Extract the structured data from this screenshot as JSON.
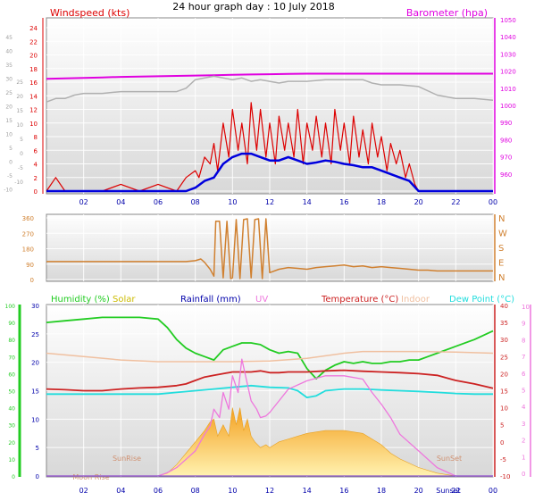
{
  "title": "24 hour graph day : 10 July 2018",
  "colors": {
    "wind_speed": "#dd0000",
    "wind_avg": "#0000dd",
    "baro": "#e000e0",
    "pressure_trace": "#b0b0b0",
    "wind_dir": "#d08030",
    "humidity": "#22cc22",
    "solar": "#ccbb00",
    "rain": "#0000aa",
    "uv": "#ee77dd",
    "temp": "#cc2222",
    "indoor": "#f0c0a0",
    "dew": "#22dddd",
    "solar_fill": "#f8b030",
    "gray_axis": "#a0a0a0"
  },
  "chart_data": [
    {
      "type": "line",
      "name": "wind_baro",
      "left_label": "Windspeed (kts)",
      "right_label": "Barometer (hpa)",
      "x_ticks": [
        "02",
        "04",
        "06",
        "08",
        "10",
        "12",
        "14",
        "16",
        "18",
        "20",
        "22",
        "00"
      ],
      "y_left_ticks": [
        "24",
        "22",
        "20",
        "18",
        "16",
        "14",
        "12",
        "10",
        "8",
        "6",
        "4",
        "2",
        "0"
      ],
      "y_left_small": [
        "45",
        "40",
        "35",
        "30",
        "25",
        "20",
        "15",
        "10",
        "5",
        "0",
        "-5",
        "-10"
      ],
      "y_left_small_inner": [
        "25",
        "20",
        "15",
        "10",
        "5",
        "0",
        "-5",
        "-10"
      ],
      "y_right_ticks": [
        "1050",
        "1040",
        "1030",
        "1020",
        "1010",
        "1000",
        "990",
        "980",
        "970",
        "960"
      ],
      "ylim_left": [
        0,
        24
      ],
      "ylim_right": [
        950,
        1050
      ],
      "series": [
        {
          "key": "baro",
          "x": [
            0,
            1,
            2,
            3,
            4,
            5,
            6,
            7,
            8,
            9,
            10,
            11,
            12,
            13,
            14,
            15,
            16,
            17,
            18,
            19,
            20,
            21,
            22,
            23,
            24
          ],
          "values": [
            1015.5,
            1015.8,
            1016,
            1016.3,
            1016.6,
            1016.8,
            1017,
            1017.2,
            1017.4,
            1017.6,
            1017.8,
            1018,
            1018.2,
            1018.4,
            1018.5,
            1018.5,
            1018.5,
            1018.5,
            1018.5,
            1018.5,
            1018.5,
            1018.5,
            1018.5,
            1018.5,
            1018.5
          ]
        },
        {
          "key": "pressure_trace",
          "x": [
            0,
            0.5,
            1,
            1.5,
            2,
            3,
            4,
            5,
            6,
            7,
            7.5,
            8,
            8.5,
            9,
            9.5,
            10,
            10.5,
            11,
            11.5,
            12,
            12.5,
            13,
            14,
            15,
            16,
            17,
            17.5,
            18,
            19,
            20,
            21,
            22,
            23,
            24
          ],
          "values": [
            1002,
            1004,
            1004,
            1006,
            1007,
            1007,
            1008,
            1008,
            1008,
            1008,
            1010,
            1015,
            1016,
            1017,
            1016,
            1015,
            1016,
            1014,
            1015,
            1014,
            1013,
            1014,
            1014,
            1015,
            1015,
            1015,
            1013,
            1012,
            1012,
            1011,
            1006,
            1004,
            1004,
            1003
          ]
        },
        {
          "key": "wind_speed",
          "x": [
            0,
            0.5,
            1,
            2,
            3,
            4,
            5,
            6,
            7,
            7.5,
            8,
            8.2,
            8.5,
            8.8,
            9,
            9.2,
            9.5,
            9.8,
            10,
            10.3,
            10.5,
            10.8,
            11,
            11.3,
            11.5,
            11.8,
            12,
            12.3,
            12.5,
            12.8,
            13,
            13.3,
            13.5,
            13.8,
            14,
            14.3,
            14.5,
            14.8,
            15,
            15.3,
            15.5,
            15.8,
            16,
            16.3,
            16.5,
            16.8,
            17,
            17.3,
            17.5,
            17.8,
            18,
            18.3,
            18.5,
            18.8,
            19,
            19.3,
            19.5,
            19.8,
            20,
            21,
            22,
            23,
            24
          ],
          "values": [
            0,
            2,
            0,
            0,
            0,
            1,
            0,
            1,
            0,
            2,
            3,
            2,
            5,
            4,
            7,
            3,
            10,
            5,
            12,
            6,
            10,
            4,
            13,
            6,
            12,
            5,
            10,
            4,
            11,
            6,
            10,
            5,
            12,
            4,
            10,
            6,
            11,
            5,
            10,
            4,
            12,
            6,
            10,
            4,
            11,
            5,
            9,
            4,
            10,
            5,
            8,
            3,
            7,
            4,
            6,
            2,
            4,
            1,
            0,
            0,
            0,
            0,
            0
          ]
        },
        {
          "key": "wind_avg",
          "x": [
            0,
            6,
            7,
            7.5,
            8,
            8.5,
            9,
            9.5,
            10,
            10.5,
            11,
            11.5,
            12,
            12.5,
            13,
            13.5,
            14,
            14.5,
            15,
            15.5,
            16,
            16.5,
            17,
            17.5,
            18,
            18.5,
            19,
            19.5,
            20,
            21,
            22,
            23,
            24
          ],
          "values": [
            0,
            0,
            0,
            0,
            0.5,
            1.5,
            2,
            4,
            5,
            5.5,
            5.5,
            5,
            4.5,
            4.5,
            5,
            4.5,
            4,
            4.2,
            4.5,
            4.3,
            4,
            3.8,
            3.5,
            3.5,
            3,
            2.5,
            2,
            1.5,
            0,
            0,
            0,
            0,
            0
          ]
        }
      ]
    },
    {
      "type": "line",
      "name": "wind_direction",
      "y_ticks": [
        "360",
        "270",
        "180",
        "90",
        "0"
      ],
      "y_right_ticks": [
        "N",
        "W",
        "S",
        "E",
        "N"
      ],
      "ylim": [
        0,
        360
      ],
      "series": [
        {
          "key": "wind_dir",
          "x": [
            0,
            1,
            2,
            3,
            4,
            5,
            6,
            7,
            7.5,
            8,
            8.3,
            8.5,
            8.8,
            9,
            9.1,
            9.3,
            9.5,
            9.7,
            9.9,
            10,
            10.2,
            10.4,
            10.6,
            10.8,
            11,
            11.2,
            11.4,
            11.6,
            11.8,
            12,
            12.5,
            13,
            13.5,
            14,
            14.5,
            15,
            15.5,
            16,
            16.5,
            17,
            17.5,
            18,
            18.5,
            19,
            19.5,
            20,
            20.5,
            21,
            22,
            23,
            24
          ],
          "values": [
            105,
            105,
            105,
            105,
            105,
            105,
            105,
            105,
            105,
            110,
            120,
            100,
            60,
            20,
            340,
            340,
            10,
            340,
            5,
            10,
            350,
            5,
            350,
            355,
            10,
            350,
            355,
            5,
            355,
            40,
            60,
            70,
            65,
            60,
            70,
            75,
            80,
            85,
            75,
            80,
            70,
            75,
            70,
            65,
            60,
            55,
            55,
            50,
            50,
            50,
            50
          ]
        }
      ]
    },
    {
      "type": "area",
      "name": "temp_humidity",
      "legend": [
        "Humidity (%)",
        "Solar",
        "Rainfall (mm)",
        "UV",
        "Temperature (°C)",
        "Indoor",
        "Dew Point (°C)"
      ],
      "y_humidity_ticks": [
        "100",
        "90",
        "80",
        "70",
        "60",
        "50",
        "40",
        "30",
        "20",
        "10",
        "0"
      ],
      "y_rain_ticks": [
        "30",
        "25",
        "20",
        "15",
        "10",
        "5",
        "0"
      ],
      "y_temp_ticks": [
        "40",
        "35",
        "30",
        "25",
        "20",
        "15",
        "10",
        "5",
        "0",
        "-5",
        "-10"
      ],
      "y_uv_ticks": [
        "10",
        "9",
        "8",
        "7",
        "6",
        "5",
        "4",
        "3",
        "2",
        "1",
        "0"
      ],
      "annotations": [
        "SunRise",
        "SunSet",
        "Moon Rise",
        "Sunset"
      ],
      "series": [
        {
          "key": "humidity",
          "x": [
            0,
            1,
            2,
            3,
            4,
            5,
            6,
            6.5,
            7,
            7.5,
            8,
            8.5,
            9,
            9.5,
            10,
            10.5,
            11,
            11.5,
            12,
            12.5,
            13,
            13.5,
            14,
            14.5,
            15,
            15.5,
            16,
            16.5,
            17,
            17.5,
            18,
            18.5,
            19,
            19.5,
            20,
            20.5,
            21,
            22,
            23,
            24
          ],
          "values": [
            90,
            91,
            92,
            93,
            93,
            93,
            92,
            87,
            80,
            75,
            72,
            70,
            68,
            74,
            76,
            78,
            78,
            77,
            74,
            72,
            73,
            72,
            63,
            57,
            62,
            65,
            67,
            66,
            67,
            66,
            66,
            67,
            67,
            68,
            68,
            70,
            72,
            76,
            80,
            85
          ]
        },
        {
          "key": "temp",
          "x": [
            0,
            1,
            2,
            3,
            4,
            5,
            6,
            7,
            7.5,
            8,
            8.5,
            9,
            9.5,
            10,
            10.5,
            11,
            11.5,
            12,
            12.5,
            13,
            14,
            15,
            16,
            17,
            18,
            19,
            20,
            21,
            22,
            23,
            24
          ],
          "values": [
            15.5,
            15.3,
            15,
            15,
            15.5,
            15.8,
            16,
            16.5,
            17,
            18,
            19,
            19.5,
            20,
            20.5,
            20.5,
            20.5,
            20.8,
            20.3,
            20.3,
            20.5,
            20.5,
            20.8,
            21,
            20.7,
            20.5,
            20.3,
            20,
            19.5,
            18,
            17,
            15.7
          ]
        },
        {
          "key": "indoor",
          "x": [
            0,
            2,
            4,
            6,
            8,
            10,
            12,
            14,
            16,
            17,
            18,
            20,
            22,
            24
          ],
          "values": [
            26,
            25,
            24,
            23.5,
            23.5,
            23.5,
            23.7,
            24.5,
            26,
            26.5,
            26.5,
            26.5,
            26.3,
            26
          ]
        },
        {
          "key": "dew",
          "x": [
            0,
            1,
            2,
            3,
            4,
            5,
            6,
            7,
            8,
            9,
            10,
            11,
            12,
            13,
            13.5,
            14,
            14.5,
            15,
            16,
            17,
            18,
            19,
            20,
            21,
            22,
            23,
            24
          ],
          "values": [
            14,
            14,
            14,
            14,
            14,
            14,
            14,
            14.5,
            15,
            15.5,
            16,
            16.5,
            16,
            15.8,
            15,
            13,
            13.5,
            15,
            15.5,
            15.5,
            15.2,
            15,
            14.8,
            14.5,
            14.2,
            14,
            14
          ]
        },
        {
          "key": "uv",
          "x": [
            0,
            5.5,
            6,
            6.5,
            7,
            7.5,
            8,
            8.5,
            8.8,
            9,
            9.3,
            9.5,
            9.8,
            10,
            10.3,
            10.5,
            10.8,
            11,
            11.3,
            11.5,
            11.8,
            12,
            12.5,
            13,
            14,
            15,
            16,
            17,
            17.5,
            18,
            18.5,
            19,
            20,
            21,
            22,
            24
          ],
          "values": [
            0,
            0,
            0,
            0.2,
            0.5,
            1,
            1.5,
            2.5,
            3,
            4,
            3.5,
            5,
            4,
            6,
            5,
            7,
            5.5,
            4.5,
            4,
            3.5,
            3.6,
            3.8,
            4.5,
            5.2,
            5.7,
            6,
            6,
            5.8,
            5,
            4.3,
            3.5,
            2.5,
            1.5,
            0.5,
            0,
            0
          ]
        },
        {
          "key": "solar_fill",
          "x": [
            0,
            5.5,
            6,
            6.5,
            7,
            7.5,
            8,
            8.5,
            8.8,
            9,
            9.2,
            9.5,
            9.8,
            10,
            10.2,
            10.4,
            10.6,
            10.8,
            11,
            11.2,
            11.5,
            11.8,
            12,
            12.5,
            13,
            13.5,
            14,
            15,
            16,
            17,
            17.5,
            18,
            18.5,
            19,
            20,
            21,
            22,
            24
          ],
          "values": [
            0,
            0,
            0,
            0.5,
            2,
            4,
            6,
            8,
            9.5,
            10,
            7,
            9,
            7,
            12,
            9,
            12,
            8,
            10,
            7,
            6,
            5,
            5.5,
            5,
            6,
            6.5,
            7,
            7.5,
            8,
            8,
            7.5,
            6.5,
            5.5,
            4,
            3,
            1.5,
            0.5,
            0,
            0
          ]
        }
      ]
    }
  ]
}
